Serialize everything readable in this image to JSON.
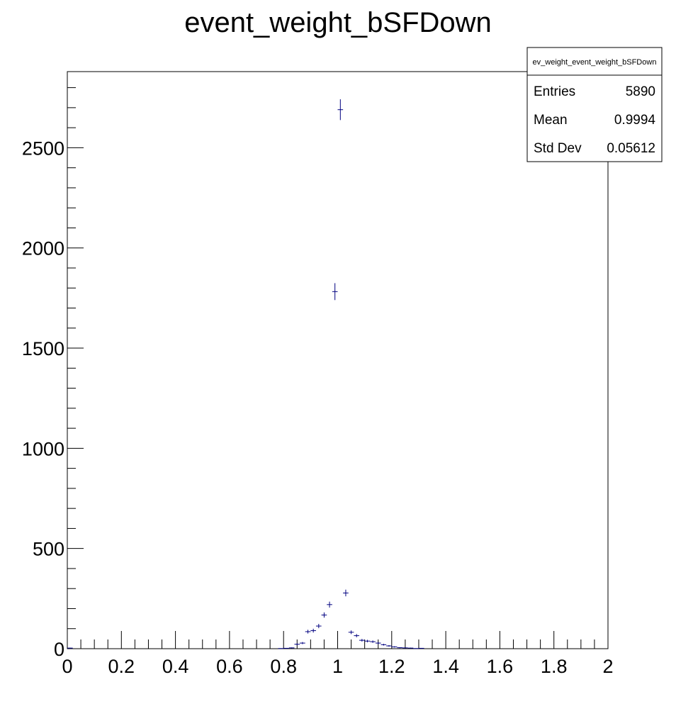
{
  "chart_data": {
    "type": "scatter",
    "title": "event_weight_bSFDown",
    "xlabel": "",
    "ylabel": "",
    "xlim": [
      0,
      2
    ],
    "ylim": [
      0,
      2880
    ],
    "x_ticks": [
      "0",
      "0.2",
      "0.4",
      "0.6",
      "0.8",
      "1",
      "1.2",
      "1.4",
      "1.6",
      "1.8",
      "2"
    ],
    "y_ticks": [
      "0",
      "500",
      "1000",
      "1500",
      "2000",
      "2500"
    ],
    "grid": false,
    "bin_width": 0.02,
    "series": [
      {
        "color": "#000080",
        "points": [
          {
            "x": 0.01,
            "y": 3
          },
          {
            "x": 0.79,
            "y": 1
          },
          {
            "x": 0.81,
            "y": 2
          },
          {
            "x": 0.83,
            "y": 4
          },
          {
            "x": 0.85,
            "y": 22
          },
          {
            "x": 0.87,
            "y": 28
          },
          {
            "x": 0.89,
            "y": 85
          },
          {
            "x": 0.91,
            "y": 90
          },
          {
            "x": 0.93,
            "y": 113
          },
          {
            "x": 0.95,
            "y": 168
          },
          {
            "x": 0.97,
            "y": 220
          },
          {
            "x": 0.99,
            "y": 1782
          },
          {
            "x": 1.01,
            "y": 2690
          },
          {
            "x": 1.03,
            "y": 278
          },
          {
            "x": 1.05,
            "y": 82
          },
          {
            "x": 1.07,
            "y": 65
          },
          {
            "x": 1.09,
            "y": 42
          },
          {
            "x": 1.11,
            "y": 38
          },
          {
            "x": 1.13,
            "y": 35
          },
          {
            "x": 1.15,
            "y": 28
          },
          {
            "x": 1.17,
            "y": 20
          },
          {
            "x": 1.19,
            "y": 14
          },
          {
            "x": 1.21,
            "y": 9
          },
          {
            "x": 1.23,
            "y": 5
          },
          {
            "x": 1.25,
            "y": 4
          },
          {
            "x": 1.27,
            "y": 3
          },
          {
            "x": 1.29,
            "y": 1
          },
          {
            "x": 1.31,
            "y": 2
          }
        ]
      }
    ],
    "stats_box": {
      "name": "ev_weight_event_weight_bSFDown",
      "rows": [
        {
          "label": "Entries",
          "value": "5890"
        },
        {
          "label": "Mean",
          "value": "0.9994"
        },
        {
          "label": "Std Dev",
          "value": "0.05612"
        }
      ],
      "position": "top-right"
    }
  }
}
